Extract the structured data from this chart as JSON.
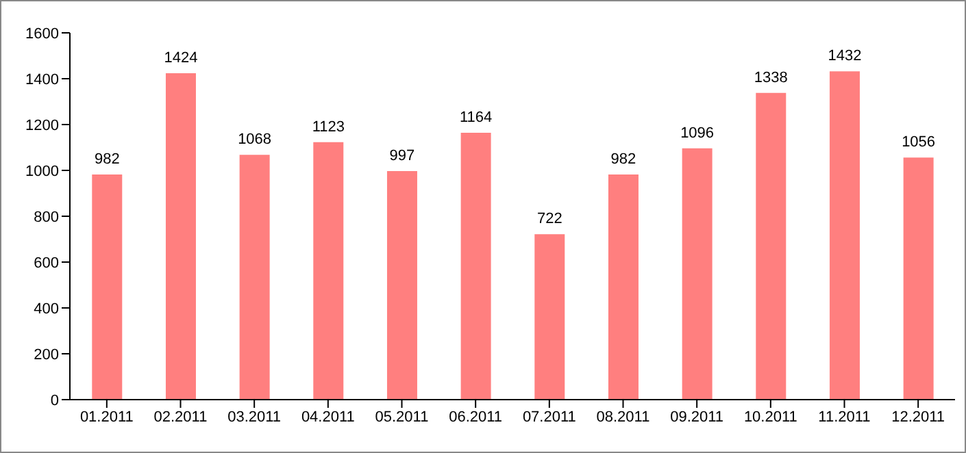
{
  "chart_data": {
    "type": "bar",
    "categories": [
      "01.2011",
      "02.2011",
      "03.2011",
      "04.2011",
      "05.2011",
      "06.2011",
      "07.2011",
      "08.2011",
      "09.2011",
      "10.2011",
      "11.2011",
      "12.2011"
    ],
    "values": [
      982,
      1424,
      1068,
      1123,
      997,
      1164,
      722,
      982,
      1096,
      1338,
      1432,
      1056
    ],
    "color": "#ff7f7f",
    "ylim": [
      0,
      1600
    ],
    "yticks": [
      0,
      200,
      400,
      600,
      800,
      1000,
      1200,
      1400,
      1600
    ],
    "grid": false,
    "data_labels": true
  }
}
